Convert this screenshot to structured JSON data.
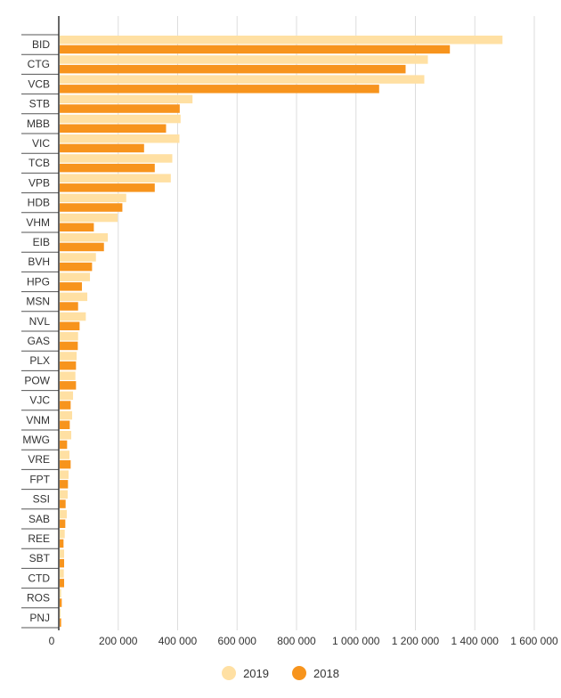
{
  "chart_data": {
    "type": "bar",
    "orientation": "horizontal",
    "categories": [
      "BID",
      "CTG",
      "VCB",
      "STB",
      "MBB",
      "VIC",
      "TCB",
      "VPB",
      "HDB",
      "VHM",
      "EIB",
      "BVH",
      "HPG",
      "MSN",
      "NVL",
      "GAS",
      "PLX",
      "POW",
      "VJC",
      "VNM",
      "MWG",
      "VRE",
      "FPT",
      "SSI",
      "SAB",
      "REE",
      "SBT",
      "CTD",
      "ROS",
      "PNJ"
    ],
    "series": [
      {
        "name": "2019",
        "color": "#FFE0A3",
        "values": [
          1493000,
          1242000,
          1230000,
          450000,
          410000,
          406000,
          382000,
          377000,
          227000,
          198000,
          165000,
          125000,
          105000,
          96000,
          91000,
          65000,
          60000,
          56000,
          48000,
          45000,
          42000,
          36000,
          33000,
          30000,
          27000,
          20000,
          18000,
          17000,
          8000,
          6000
        ]
      },
      {
        "name": "2018",
        "color": "#F7941D",
        "values": [
          1316000,
          1167000,
          1078000,
          407000,
          361000,
          287000,
          323000,
          323000,
          214000,
          118000,
          152000,
          112000,
          78000,
          65000,
          70000,
          64000,
          58000,
          58000,
          40000,
          37000,
          28000,
          40000,
          31000,
          23000,
          22000,
          16000,
          18000,
          18000,
          10000,
          8000
        ]
      }
    ],
    "xlim": [
      0,
      1600000
    ],
    "xticks": [
      0,
      200000,
      400000,
      600000,
      800000,
      1000000,
      1200000,
      1400000,
      1600000
    ],
    "xtick_labels": [
      "0",
      "200 000",
      "400 000",
      "600 000",
      "800 000",
      "1 000 000",
      "1 200 000",
      "1 400 000",
      "1 600 000"
    ],
    "grid": true,
    "legend_position": "bottom-center"
  }
}
